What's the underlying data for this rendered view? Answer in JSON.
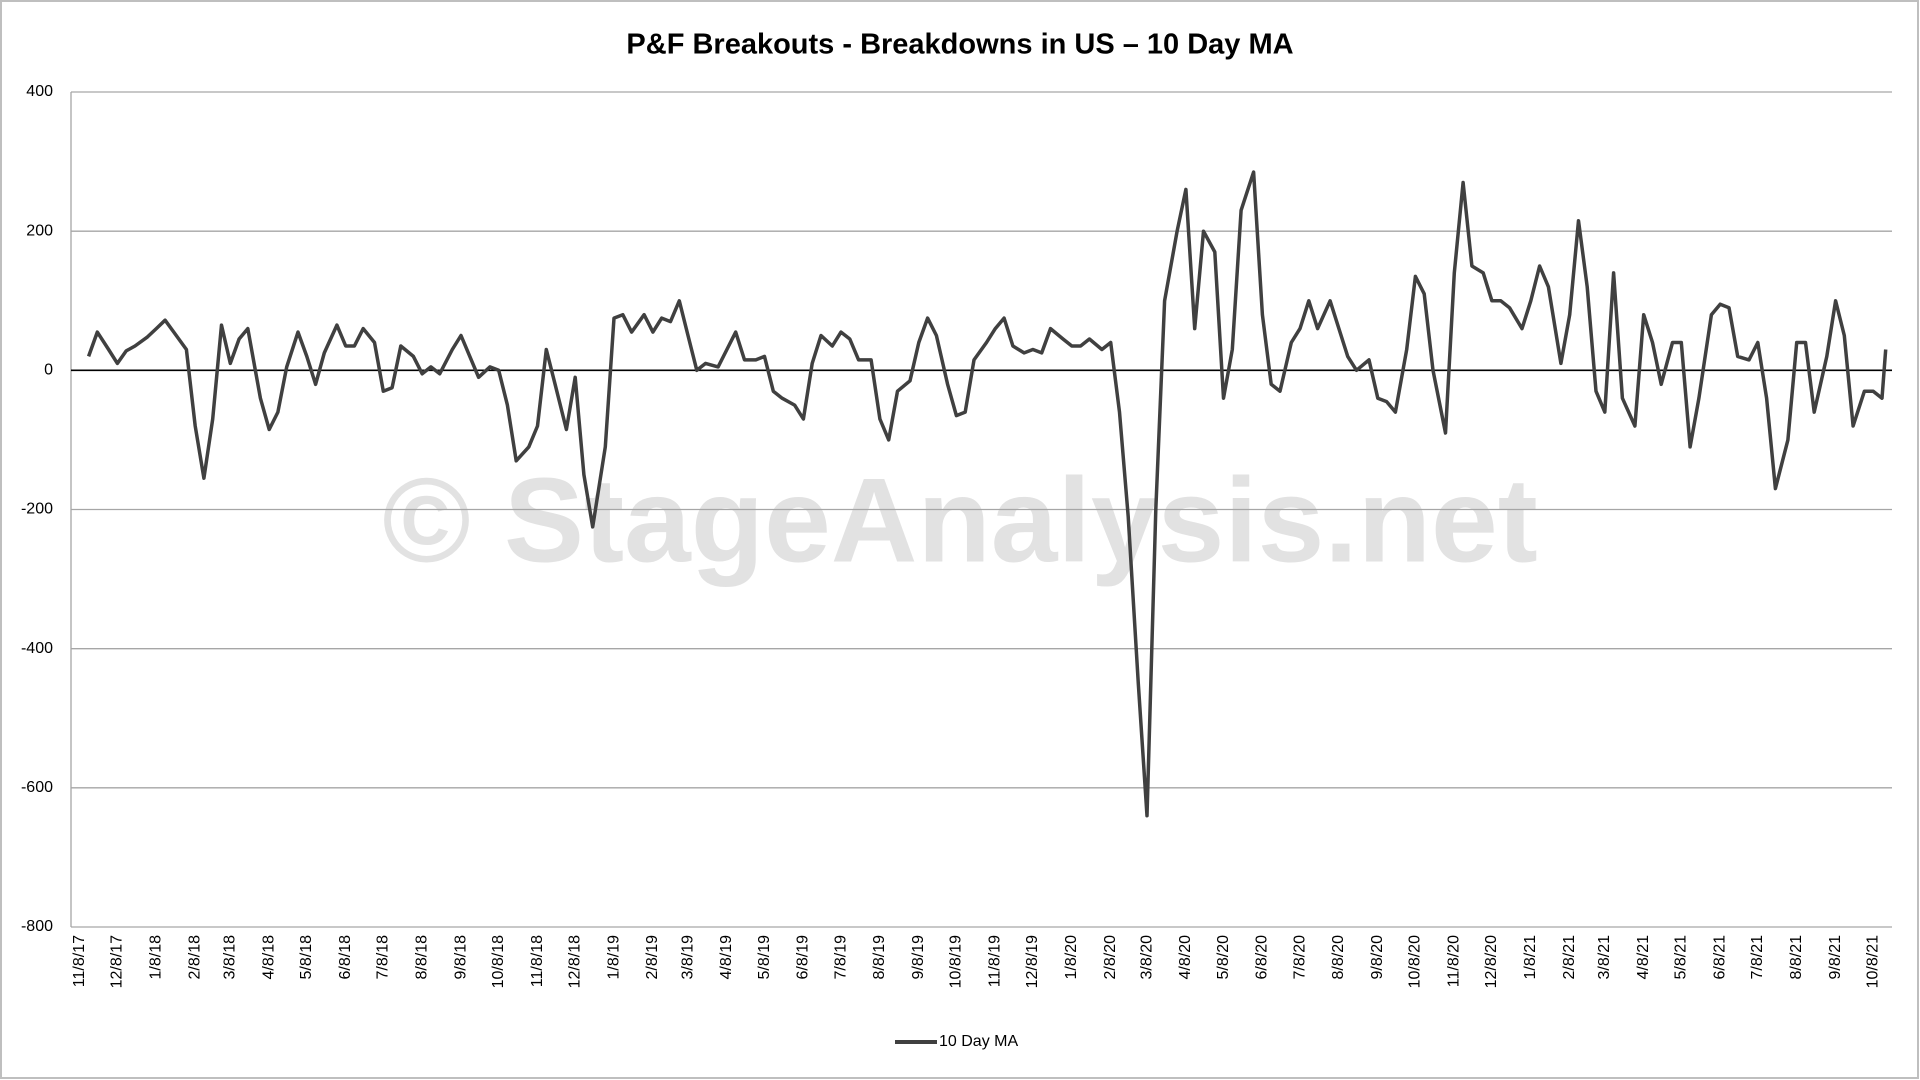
{
  "chart_data": {
    "type": "line",
    "title": "P&F Breakouts - Breakdowns in US – 10 Day MA",
    "watermark": "© StageAnalysis.net",
    "x": [
      "11/15/17",
      "11/22/17",
      "12/1/17",
      "12/8/17",
      "12/15/17",
      "12/22/17",
      "1/1/18",
      "1/8/18",
      "1/15/18",
      "1/22/18",
      "2/1/18",
      "2/8/18",
      "2/15/18",
      "2/22/18",
      "3/1/18",
      "3/8/18",
      "3/15/18",
      "3/22/18",
      "4/1/18",
      "4/8/18",
      "4/15/18",
      "4/22/18",
      "5/1/18",
      "5/8/18",
      "5/15/18",
      "5/22/18",
      "6/1/18",
      "6/8/18",
      "6/15/18",
      "6/22/18",
      "7/1/18",
      "7/8/18",
      "7/15/18",
      "7/22/18",
      "8/1/18",
      "8/8/18",
      "8/15/18",
      "8/22/18",
      "9/1/18",
      "9/8/18",
      "9/15/18",
      "9/22/18",
      "10/1/18",
      "10/8/18",
      "10/15/18",
      "10/22/18",
      "11/1/18",
      "11/8/18",
      "11/15/18",
      "11/22/18",
      "12/1/18",
      "12/8/18",
      "12/15/18",
      "12/22/18",
      "1/1/19",
      "1/8/19",
      "1/15/19",
      "1/22/19",
      "2/1/19",
      "2/8/19",
      "2/15/19",
      "2/22/19",
      "3/1/19",
      "3/8/19",
      "3/15/19",
      "3/22/19",
      "4/1/19",
      "4/8/19",
      "4/15/19",
      "4/22/19",
      "5/1/19",
      "5/8/19",
      "5/15/19",
      "5/22/19",
      "6/1/19",
      "6/8/19",
      "6/15/19",
      "6/22/19",
      "7/1/19",
      "7/8/19",
      "7/15/19",
      "7/22/19",
      "8/1/19",
      "8/8/19",
      "8/15/19",
      "8/22/19",
      "9/1/19",
      "9/8/19",
      "9/15/19",
      "9/22/19",
      "10/1/19",
      "10/8/19",
      "10/15/19",
      "10/22/19",
      "11/1/19",
      "11/8/19",
      "11/15/19",
      "11/22/19",
      "12/1/19",
      "12/8/19",
      "12/15/19",
      "12/22/19",
      "1/1/20",
      "1/8/20",
      "1/15/20",
      "1/22/20",
      "2/1/20",
      "2/8/20",
      "2/15/20",
      "2/22/20",
      "3/1/20",
      "3/8/20",
      "3/15/20",
      "3/22/20",
      "4/1/20",
      "4/8/20",
      "4/15/20",
      "4/22/20",
      "5/1/20",
      "5/8/20",
      "5/15/20",
      "5/22/20",
      "6/1/20",
      "6/8/20",
      "6/15/20",
      "6/22/20",
      "7/1/20",
      "7/8/20",
      "7/15/20",
      "7/22/20",
      "8/1/20",
      "8/8/20",
      "8/15/20",
      "8/22/20",
      "9/1/20",
      "9/8/20",
      "9/15/20",
      "9/22/20",
      "10/1/20",
      "10/8/20",
      "10/15/20",
      "10/22/20",
      "11/1/20",
      "11/8/20",
      "11/15/20",
      "11/22/20",
      "12/1/20",
      "12/8/20",
      "12/15/20",
      "12/22/20",
      "1/1/21",
      "1/8/21",
      "1/15/21",
      "1/22/21",
      "2/1/21",
      "2/8/21",
      "2/15/21",
      "2/22/21",
      "3/1/21",
      "3/8/21",
      "3/15/21",
      "3/22/21",
      "4/1/21",
      "4/8/21",
      "4/15/21",
      "4/22/21",
      "5/1/21",
      "5/8/21",
      "5/15/21",
      "5/22/21",
      "6/1/21",
      "6/8/21",
      "6/15/21",
      "6/22/21",
      "7/1/21",
      "7/8/21",
      "7/15/21",
      "7/22/21",
      "8/1/21",
      "8/8/21",
      "8/15/21",
      "8/22/21",
      "9/1/21",
      "9/8/21",
      "9/15/21",
      "9/22/21",
      "10/1/21",
      "10/8/21",
      "10/15/21",
      "10/18/21"
    ],
    "series": [
      {
        "name": "10 Day MA",
        "color": "#404040",
        "values": [
          20,
          55,
          30,
          10,
          28,
          35,
          48,
          60,
          72,
          55,
          30,
          -80,
          -155,
          -70,
          65,
          10,
          45,
          60,
          -40,
          -85,
          -60,
          5,
          55,
          20,
          -20,
          25,
          65,
          35,
          35,
          60,
          40,
          -30,
          -25,
          35,
          20,
          -5,
          5,
          -5,
          30,
          50,
          20,
          -10,
          5,
          0,
          -50,
          -130,
          -110,
          -80,
          30,
          -20,
          -85,
          -10,
          -150,
          -225,
          -110,
          75,
          80,
          55,
          80,
          55,
          75,
          70,
          100,
          50,
          0,
          10,
          5,
          30,
          55,
          15,
          15,
          20,
          -30,
          -40,
          -50,
          -70,
          10,
          50,
          35,
          55,
          45,
          15,
          15,
          -70,
          -100,
          -30,
          -15,
          40,
          75,
          50,
          -20,
          -65,
          -60,
          15,
          40,
          60,
          75,
          35,
          25,
          30,
          25,
          60,
          45,
          35,
          35,
          45,
          30,
          40,
          -60,
          -210,
          -450,
          -640,
          -200,
          100,
          200,
          260,
          60,
          200,
          170,
          -40,
          30,
          230,
          285,
          80,
          -20,
          -30,
          40,
          60,
          100,
          60,
          100,
          60,
          20,
          0,
          15,
          -40,
          -45,
          -60,
          30,
          135,
          110,
          0,
          -90,
          140,
          270,
          150,
          140,
          100,
          100,
          90,
          60,
          100,
          150,
          120,
          10,
          80,
          215,
          120,
          -30,
          -60,
          140,
          -40,
          -80,
          80,
          40,
          -20,
          40,
          40,
          -110,
          -40,
          80,
          95,
          90,
          20,
          15,
          40,
          -40,
          -170,
          -100,
          40,
          40,
          -60,
          20,
          100,
          50,
          -80,
          -30,
          -30,
          -40,
          30
        ]
      }
    ],
    "xlim": [
      "11/1/17",
      "10/23/21"
    ],
    "xticks": [
      "11/8/17",
      "12/8/17",
      "1/8/18",
      "2/8/18",
      "3/8/18",
      "4/8/18",
      "5/8/18",
      "6/8/18",
      "7/8/18",
      "8/8/18",
      "9/8/18",
      "10/8/18",
      "11/8/18",
      "12/8/18",
      "1/8/19",
      "2/8/19",
      "3/8/19",
      "4/8/19",
      "5/8/19",
      "6/8/19",
      "7/8/19",
      "8/8/19",
      "9/8/19",
      "10/8/19",
      "11/8/19",
      "12/8/19",
      "1/8/20",
      "2/8/20",
      "3/8/20",
      "4/8/20",
      "5/8/20",
      "6/8/20",
      "7/8/20",
      "8/8/20",
      "9/8/20",
      "10/8/20",
      "11/8/20",
      "12/8/20",
      "1/8/21",
      "2/8/21",
      "3/8/21",
      "4/8/21",
      "5/8/21",
      "6/8/21",
      "7/8/21",
      "8/8/21",
      "9/8/21",
      "10/8/21"
    ],
    "ylim": [
      -800,
      400
    ],
    "yticks": [
      -800,
      -600,
      -400,
      -200,
      0,
      200,
      400
    ],
    "grid": true,
    "legend": "bottom"
  }
}
